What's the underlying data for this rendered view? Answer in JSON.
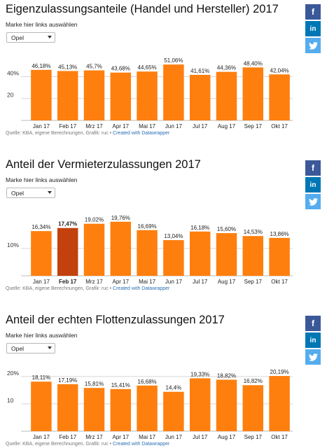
{
  "share": {
    "facebook_label": "f",
    "linkedin_label": "in"
  },
  "panels": [
    {
      "title": "Eigenzulassungsanteile (Handel und Hersteller) 2017",
      "subtitle": "Marke hier links auswählen",
      "selected_brand": "Opel",
      "source_text": "Quelle: KBA, eigene Berechnungen, Grafik: ruc • ",
      "source_link": "Created with Datawrapper"
    },
    {
      "title": "Anteil der Vermieterzulassungen 2017",
      "subtitle": "Marke hier links auswählen",
      "selected_brand": "Opel",
      "source_text": "Quelle: KBA, eigene Berechnungen, Grafik: ruc • ",
      "source_link": "Created with Datawrapper"
    },
    {
      "title": "Anteil der echten Flottenzulassungen 2017",
      "subtitle": "Marke hier links auswählen",
      "selected_brand": "Opel",
      "source_text": "Quelle: KBA, eigene Berechnungen, Grafik: ruc • ",
      "source_link": "Created with Datawrapper"
    }
  ],
  "chart_data": [
    {
      "type": "bar",
      "title": "Eigenzulassungsanteile (Handel und Hersteller) 2017",
      "categories": [
        "Jan 17",
        "Feb 17",
        "Mrz 17",
        "Apr 17",
        "Mai 17",
        "Jun 17",
        "Jul 17",
        "Aug 17",
        "Sep 17",
        "Okt 17"
      ],
      "values": [
        46.18,
        45.13,
        45.7,
        43.68,
        44.65,
        51.06,
        41.61,
        44.36,
        48.4,
        42.04
      ],
      "value_labels": [
        "46,18%",
        "45,13%",
        "45,7%",
        "43,68%",
        "44,65%",
        "51,06%",
        "41,61%",
        "44,36%",
        "48,40%",
        "42,04%"
      ],
      "y_ticks": [
        20,
        40
      ],
      "y_tick_labels": [
        "20",
        "40%"
      ],
      "ylim": [
        0,
        55
      ],
      "grid": true,
      "highlight_index": null,
      "bar_color": "#ff7f0e",
      "highlight_color": "#c2410c"
    },
    {
      "type": "bar",
      "title": "Anteil der Vermieterzulassungen 2017",
      "categories": [
        "Jan 17",
        "Feb 17",
        "Mrz 17",
        "Apr 17",
        "Mai 17",
        "Jun 17",
        "Jul 17",
        "Aug 17",
        "Sep 17",
        "Okt 17"
      ],
      "values": [
        16.34,
        17.47,
        19.02,
        19.76,
        16.69,
        13.04,
        16.18,
        15.6,
        14.53,
        13.86
      ],
      "value_labels": [
        "16,34%",
        "17,47%",
        "19,02%",
        "19,76%",
        "16,69%",
        "13,04%",
        "16,18%",
        "15,60%",
        "14,53%",
        "13,86%"
      ],
      "y_ticks": [
        10
      ],
      "y_tick_labels": [
        "10%"
      ],
      "ylim": [
        0,
        22
      ],
      "grid": true,
      "highlight_index": 1,
      "bar_color": "#ff7f0e",
      "highlight_color": "#c2410c"
    },
    {
      "type": "bar",
      "title": "Anteil der echten Flottenzulassungen 2017",
      "categories": [
        "Jan 17",
        "Feb 17",
        "Mrz 17",
        "Apr 17",
        "Mai 17",
        "Jun 17",
        "Jul 17",
        "Aug 17",
        "Sep 17",
        "Okt 17"
      ],
      "values": [
        18.11,
        17.19,
        15.81,
        15.41,
        16.68,
        14.4,
        19.33,
        18.82,
        16.82,
        20.19
      ],
      "value_labels": [
        "18,11%",
        "17,19%",
        "15,81%",
        "15,41%",
        "16,68%",
        "14,4%",
        "19,33%",
        "18,82%",
        "16,82%",
        "20,19%"
      ],
      "y_ticks": [
        10,
        20
      ],
      "y_tick_labels": [
        "10",
        "20%"
      ],
      "ylim": [
        0,
        22
      ],
      "grid": true,
      "highlight_index": null,
      "bar_color": "#ff7f0e",
      "highlight_color": "#c2410c"
    }
  ]
}
